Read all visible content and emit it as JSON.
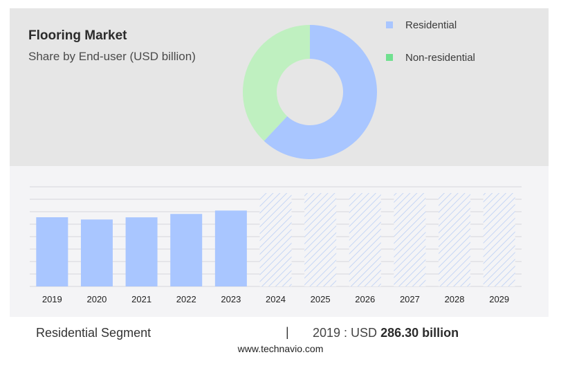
{
  "header": {
    "title": "Flooring Market",
    "subtitle": "Share by End-user (USD billion)"
  },
  "legend": [
    {
      "label": "Residential",
      "color": "#a9c6ff"
    },
    {
      "label": "Non-residential",
      "color": "#70e08f"
    }
  ],
  "footer": {
    "segment_label": "Residential Segment",
    "separator": "|",
    "value_prefix": "2019 : USD",
    "value_bold": "286.30 billion"
  },
  "source": "www.technavio.com",
  "chart_data": [
    {
      "type": "pie",
      "slices": [
        {
          "label": "Residential",
          "value": 62,
          "color": "#a9c6ff"
        },
        {
          "label": "Non-residential",
          "value": 38,
          "color": "#bff0c0"
        }
      ]
    },
    {
      "type": "bar",
      "categories": [
        "2019",
        "2020",
        "2021",
        "2022",
        "2023",
        "2024",
        "2025",
        "2026",
        "2027",
        "2028",
        "2029"
      ],
      "values": [
        286.3,
        277,
        286,
        300,
        314,
        null,
        null,
        null,
        null,
        null,
        null
      ],
      "forecast_from": "2024",
      "bar_color": "#a9c6ff",
      "grid": true
    }
  ]
}
